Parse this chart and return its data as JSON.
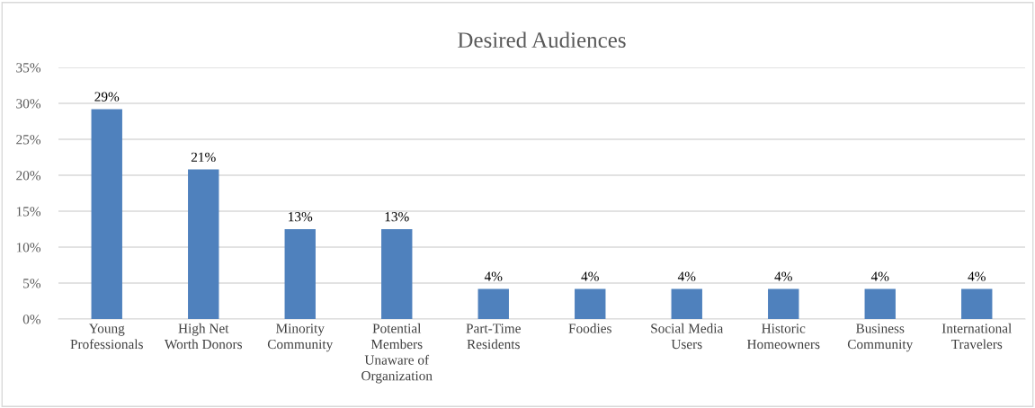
{
  "chart_data": {
    "type": "bar",
    "title": "Desired Audiences",
    "categories": [
      "Young\nProfessionals",
      "High Net\nWorth Donors",
      "Minority\nCommunity",
      "Potential\nMembers\nUnaware of\nOrganization",
      "Part-Time\nResidents",
      "Foodies",
      "Social Media\nUsers",
      "Historic\nHomeowners",
      "Business\nCommunity",
      "International\nTravelers"
    ],
    "values": [
      29.2,
      20.8,
      12.5,
      12.5,
      4.2,
      4.2,
      4.2,
      4.2,
      4.2,
      4.2
    ],
    "value_labels": [
      "29%",
      "21%",
      "13%",
      "13%",
      "4%",
      "4%",
      "4%",
      "4%",
      "4%",
      "4%"
    ],
    "color": "#4f81bd",
    "ylim": [
      0,
      35
    ],
    "yticks": [
      {
        "value": 0,
        "label": "0%"
      },
      {
        "value": 5,
        "label": "5%"
      },
      {
        "value": 10,
        "label": "10%"
      },
      {
        "value": 15,
        "label": "15%"
      },
      {
        "value": 20,
        "label": "20%"
      },
      {
        "value": 25,
        "label": "25%"
      },
      {
        "value": 30,
        "label": "30%"
      },
      {
        "value": 35,
        "label": "35%"
      }
    ],
    "grid": "y"
  }
}
